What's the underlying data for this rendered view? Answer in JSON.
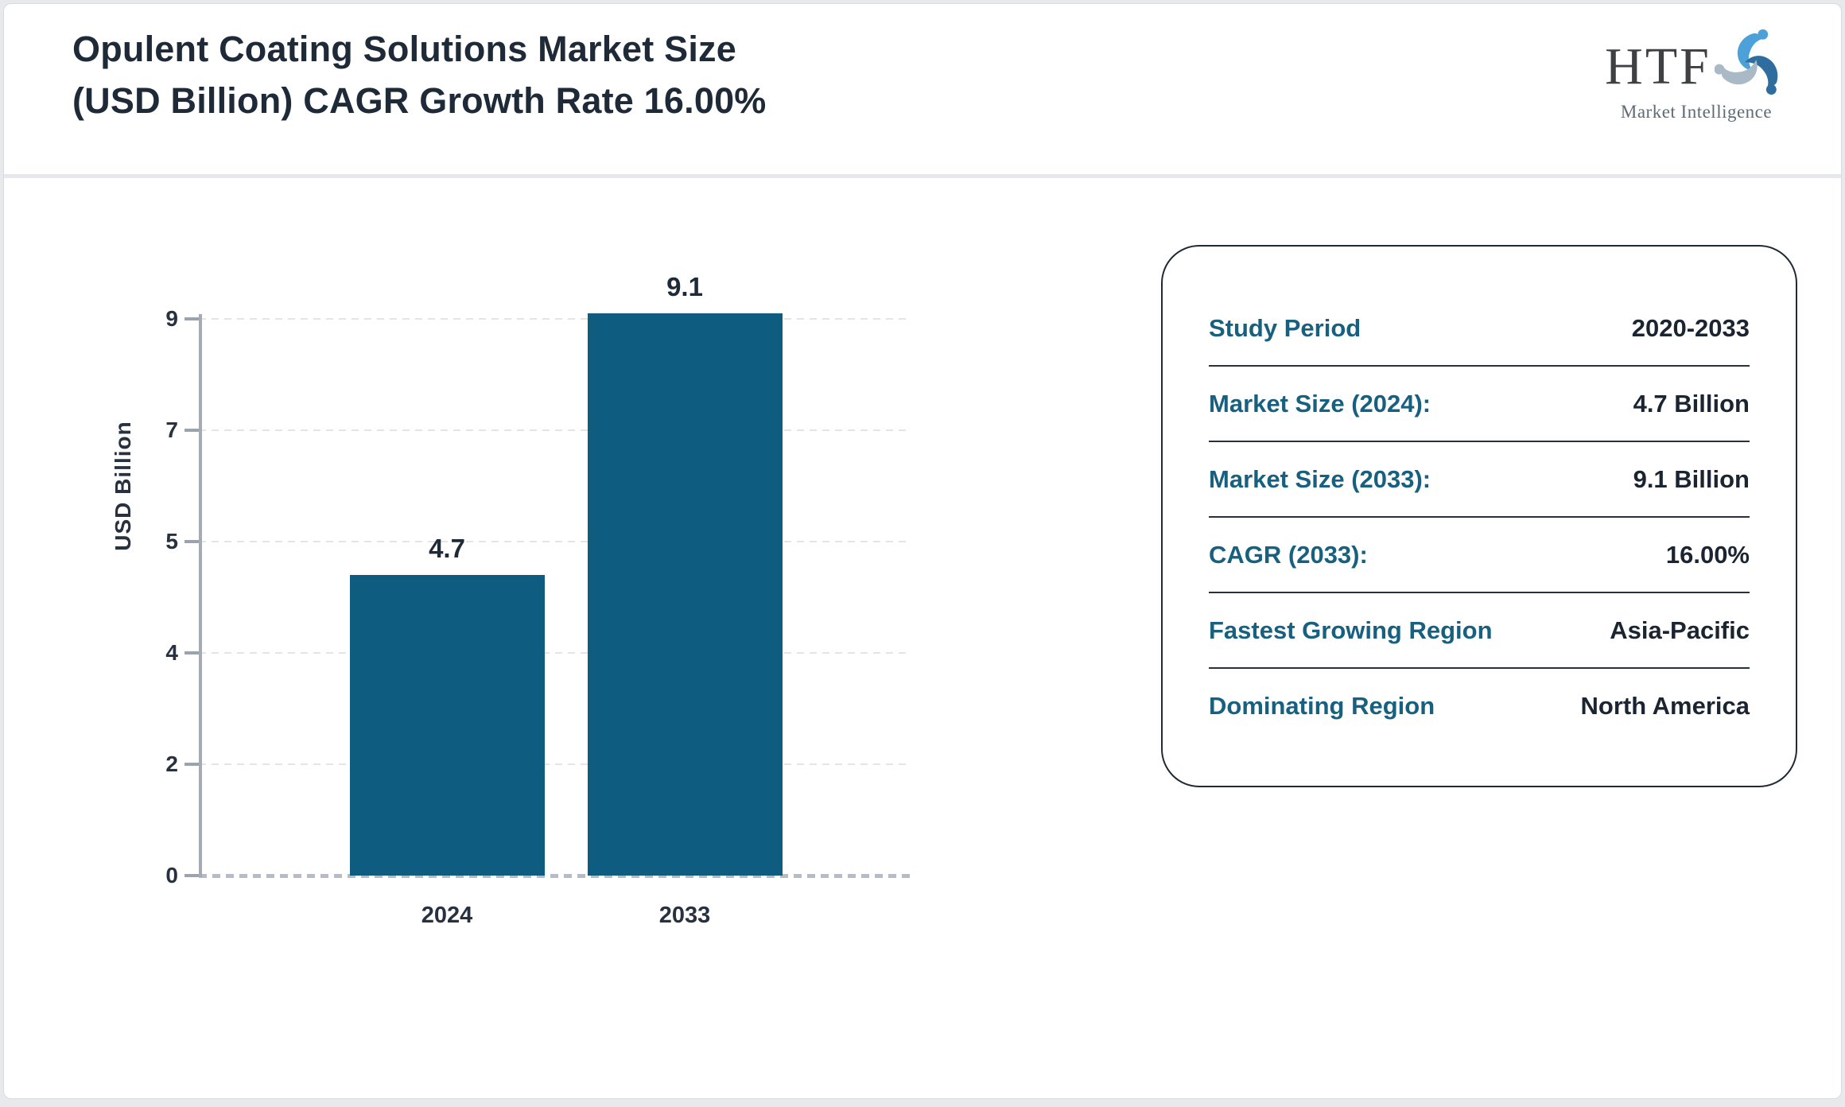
{
  "header": {
    "title": "Opulent Coating Solutions Market Size (USD Billion) CAGR Growth Rate 16.00%"
  },
  "logo": {
    "name": "HTF",
    "subtitle": "Market Intelligence",
    "mark_colors": [
      "#4ca2d8",
      "#2f6d9f",
      "#a9bac6"
    ]
  },
  "chart_data": {
    "type": "bar",
    "categories": [
      "2024",
      "2033"
    ],
    "values": [
      4.7,
      9.1
    ],
    "data_labels": [
      "4.7",
      "9.1"
    ],
    "title": "",
    "xlabel": "",
    "ylabel": "USD Billion",
    "yticks": [
      0,
      2,
      4,
      5,
      7,
      9
    ],
    "ylim": [
      0,
      9.1
    ],
    "grid": "dashed horizontal",
    "legend": "none",
    "bar_color": "#0e5d81",
    "axis_color": "#a4abb5",
    "tick_label_color": "#273140"
  },
  "panel": {
    "rows": [
      {
        "label": "Study Period",
        "value": "2020-2033"
      },
      {
        "label": "Market Size (2024):",
        "value": "4.7 Billion"
      },
      {
        "label": "Market Size (2033):",
        "value": "9.1 Billion"
      },
      {
        "label": "CAGR (2033):",
        "value": "16.00%"
      },
      {
        "label": "Fastest Growing Region",
        "value": "Asia-Pacific"
      },
      {
        "label": "Dominating Region",
        "value": "North America"
      }
    ]
  }
}
